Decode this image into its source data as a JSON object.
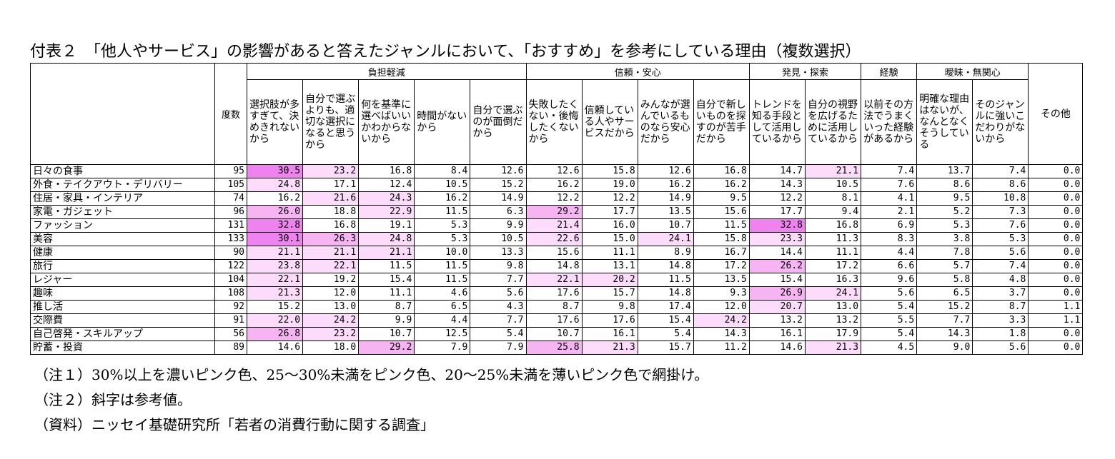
{
  "title": "付表２　「他人やサービス」の影響があると答えたジャンルにおいて、「おすすめ」を参考にしている理由（複数選択）",
  "table": {
    "n_header": "度数",
    "groups": [
      {
        "label": "負担軽減",
        "span": 5
      },
      {
        "label": "信頼・安心",
        "span": 4
      },
      {
        "label": "発見・探索",
        "span": 2
      },
      {
        "label": "経験",
        "span": 1
      },
      {
        "label": "曖昧・無関心",
        "span": 2
      }
    ],
    "columns": [
      "選択肢が多すぎて、決めきれないから",
      "自分で選ぶよりも、適切な選択になると思うから",
      "何を基準に選べばいいかわからないから",
      "時間がないから",
      "自分で選ぶのが面倒だから",
      "失敗したくない・後悔したくないから",
      "信頼している人やサービスだから",
      "みんなが選んでいるものなら安心だから",
      "自分で新しいものを探すのが苦手だから",
      "トレンドを知る手段として活用しているから",
      "自分の視野を広げるために活用しているから",
      "以前その方法でうまくいった経験があるから",
      "明確な理由はないが、なんとなくそうしている",
      "そのジャンルに強いこだわりがないから",
      "その他"
    ],
    "shading": [
      {
        "min": 30,
        "color": "#ee82ee"
      },
      {
        "min": 25,
        "color": "#f7b4f2"
      },
      {
        "min": 20,
        "color": "#fcdcfa"
      }
    ],
    "rows": [
      {
        "label": "日々の食事",
        "n": 95,
        "values": [
          "30.5",
          "23.2",
          "16.8",
          "8.4",
          "12.6",
          "12.6",
          "15.8",
          "12.6",
          "16.8",
          "14.7",
          "21.1",
          "7.4",
          "13.7",
          "7.4",
          "0.0"
        ]
      },
      {
        "label": "外食・テイクアウト・デリバリー",
        "n": 105,
        "values": [
          "24.8",
          "17.1",
          "12.4",
          "10.5",
          "15.2",
          "16.2",
          "19.0",
          "16.2",
          "16.2",
          "14.3",
          "10.5",
          "7.6",
          "8.6",
          "8.6",
          "0.0"
        ]
      },
      {
        "label": "住居・家具・インテリア",
        "n": 74,
        "values": [
          "16.2",
          "21.6",
          "24.3",
          "16.2",
          "14.9",
          "12.2",
          "12.2",
          "14.9",
          "9.5",
          "12.2",
          "8.1",
          "4.1",
          "9.5",
          "10.8",
          "0.0"
        ]
      },
      {
        "label": "家電・ガジェット",
        "n": 96,
        "values": [
          "26.0",
          "18.8",
          "22.9",
          "11.5",
          "6.3",
          "29.2",
          "17.7",
          "13.5",
          "15.6",
          "17.7",
          "9.4",
          "2.1",
          "5.2",
          "7.3",
          "0.0"
        ]
      },
      {
        "label": "ファッション",
        "n": 131,
        "values": [
          "32.8",
          "16.8",
          "19.1",
          "5.3",
          "9.9",
          "21.4",
          "16.0",
          "10.7",
          "11.5",
          "32.8",
          "16.8",
          "6.9",
          "5.3",
          "7.6",
          "0.0"
        ]
      },
      {
        "label": "美容",
        "n": 133,
        "values": [
          "30.1",
          "26.3",
          "24.8",
          "5.3",
          "10.5",
          "22.6",
          "15.0",
          "24.1",
          "15.8",
          "23.3",
          "11.3",
          "8.3",
          "3.8",
          "5.3",
          "0.0"
        ]
      },
      {
        "label": "健康",
        "n": 90,
        "values": [
          "21.1",
          "21.1",
          "21.1",
          "10.0",
          "13.3",
          "15.6",
          "11.1",
          "8.9",
          "16.7",
          "14.4",
          "11.1",
          "4.4",
          "7.8",
          "5.6",
          "0.0"
        ]
      },
      {
        "label": "旅行",
        "n": 122,
        "values": [
          "23.8",
          "22.1",
          "11.5",
          "11.5",
          "9.8",
          "14.8",
          "13.1",
          "14.8",
          "17.2",
          "26.2",
          "17.2",
          "6.6",
          "5.7",
          "7.4",
          "0.0"
        ]
      },
      {
        "label": "レジャー",
        "n": 104,
        "values": [
          "22.1",
          "19.2",
          "15.4",
          "11.5",
          "7.7",
          "22.1",
          "20.2",
          "11.5",
          "13.5",
          "15.4",
          "16.3",
          "9.6",
          "5.8",
          "4.8",
          "0.0"
        ]
      },
      {
        "label": "趣味",
        "n": 108,
        "values": [
          "21.3",
          "12.0",
          "11.1",
          "4.6",
          "5.6",
          "17.6",
          "15.7",
          "14.8",
          "9.3",
          "26.9",
          "24.1",
          "5.6",
          "6.5",
          "3.7",
          "0.0"
        ]
      },
      {
        "label": "推し活",
        "n": 92,
        "values": [
          "15.2",
          "13.0",
          "8.7",
          "6.5",
          "4.3",
          "8.7",
          "9.8",
          "17.4",
          "12.0",
          "20.7",
          "13.0",
          "5.4",
          "15.2",
          "8.7",
          "1.1"
        ]
      },
      {
        "label": "交際費",
        "n": 91,
        "values": [
          "22.0",
          "24.2",
          "9.9",
          "4.4",
          "7.7",
          "17.6",
          "17.6",
          "15.4",
          "24.2",
          "13.2",
          "13.2",
          "5.5",
          "7.7",
          "3.3",
          "1.1"
        ]
      },
      {
        "label": "自己啓発・スキルアップ",
        "n": 56,
        "values": [
          "26.8",
          "23.2",
          "10.7",
          "12.5",
          "5.4",
          "10.7",
          "16.1",
          "5.4",
          "14.3",
          "16.1",
          "17.9",
          "5.4",
          "14.3",
          "1.8",
          "0.0"
        ]
      },
      {
        "label": "貯蓄・投資",
        "n": 89,
        "values": [
          "14.6",
          "18.0",
          "29.2",
          "7.9",
          "7.9",
          "25.8",
          "21.3",
          "15.7",
          "11.2",
          "14.6",
          "21.3",
          "4.5",
          "9.0",
          "5.6",
          "0.0"
        ]
      }
    ]
  },
  "notes": [
    "（注１）30%以上を濃いピンク色、25～30%未満をピンク色、20～25%未満を薄いピンク色で網掛け。",
    "（注２）斜字は参考値。",
    "（資料）ニッセイ基礎研究所「若者の消費行動に関する調査」"
  ]
}
